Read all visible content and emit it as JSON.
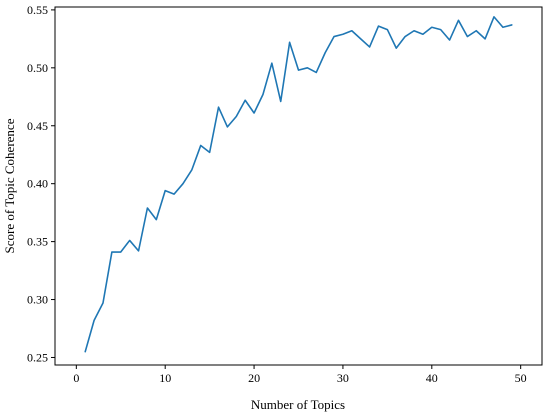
{
  "chart_data": {
    "type": "line",
    "title": "",
    "xlabel": "Number of Topics",
    "ylabel": "Score of Topic Coherence",
    "xlim": [
      -2.4,
      52.4
    ],
    "ylim": [
      0.2435,
      0.5525
    ],
    "xticks": [
      0,
      10,
      20,
      30,
      40,
      50
    ],
    "yticks": [
      0.25,
      0.3,
      0.35,
      0.4,
      0.45,
      0.5,
      0.55
    ],
    "ytick_labels": [
      "0.25",
      "0.30",
      "0.35",
      "0.40",
      "0.45",
      "0.50",
      "0.55"
    ],
    "grid": false,
    "legend": "none",
    "line_color": "#1f77b4",
    "series": [
      {
        "x": [
          1,
          2,
          3,
          4,
          5,
          6,
          7,
          8,
          9,
          10,
          11,
          12,
          13,
          14,
          15,
          16,
          17,
          18,
          19,
          20,
          21,
          22,
          23,
          24,
          25,
          26,
          27,
          28,
          29,
          30,
          31,
          32,
          33,
          34,
          35,
          36,
          37,
          38,
          39,
          40,
          41,
          42,
          43,
          44,
          45,
          46,
          47,
          48,
          49
        ],
        "values": [
          0.255,
          0.282,
          0.297,
          0.341,
          0.341,
          0.351,
          0.342,
          0.379,
          0.369,
          0.394,
          0.391,
          0.4,
          0.412,
          0.433,
          0.427,
          0.466,
          0.449,
          0.458,
          0.472,
          0.461,
          0.477,
          0.504,
          0.471,
          0.522,
          0.498,
          0.5,
          0.496,
          0.513,
          0.527,
          0.529,
          0.532,
          0.525,
          0.518,
          0.536,
          0.533,
          0.517,
          0.527,
          0.532,
          0.529,
          0.535,
          0.533,
          0.524,
          0.541,
          0.527,
          0.532,
          0.525,
          0.544,
          0.535,
          0.537
        ]
      }
    ]
  }
}
